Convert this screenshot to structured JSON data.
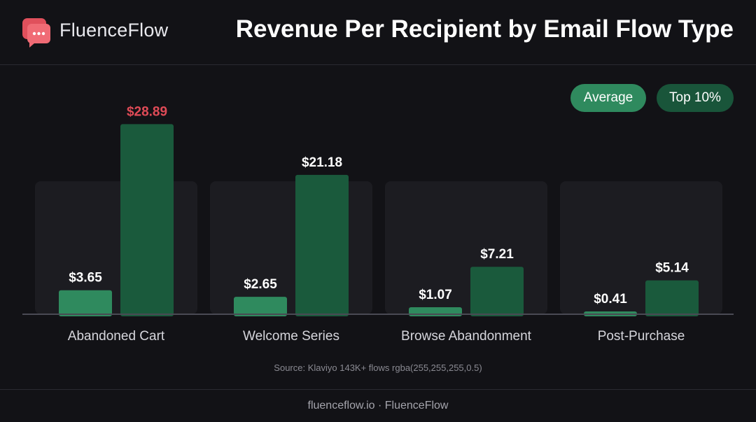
{
  "brand": {
    "name": "FluenceFlow"
  },
  "title": "Revenue Per Recipient by Email Flow Type",
  "legend": {
    "average": "Average",
    "top10": "Top 10%"
  },
  "colors": {
    "average": "#2f8a5e",
    "top10": "#1a5a3c",
    "highlight": "#e04b57",
    "panel": "#1c1c21",
    "baseline": "#4a4a54",
    "label": "#ffffff"
  },
  "chart_data": {
    "type": "bar",
    "title": "Revenue Per Recipient by Email Flow Type",
    "categories": [
      "Abandoned Cart",
      "Welcome Series",
      "Browse Abandonment",
      "Post-Purchase"
    ],
    "series": [
      {
        "name": "Average",
        "values": [
          3.65,
          2.65,
          1.07,
          0.41
        ],
        "labels": [
          "$3.65",
          "$2.65",
          "$1.07",
          "$0.41"
        ]
      },
      {
        "name": "Top 10%",
        "values": [
          28.89,
          21.18,
          7.21,
          5.14
        ],
        "labels": [
          "$28.89",
          "$21.18",
          "$7.21",
          "$5.14"
        ]
      }
    ],
    "highlight": {
      "series": 1,
      "index": 0
    },
    "ylim": [
      0,
      30
    ],
    "grid": false,
    "legend_position": "top-right"
  },
  "source": "Source: Klaviyo 143K+ flows  rgba(255,255,255,0.5)",
  "footer": "fluenceflow.io · FluenceFlow"
}
